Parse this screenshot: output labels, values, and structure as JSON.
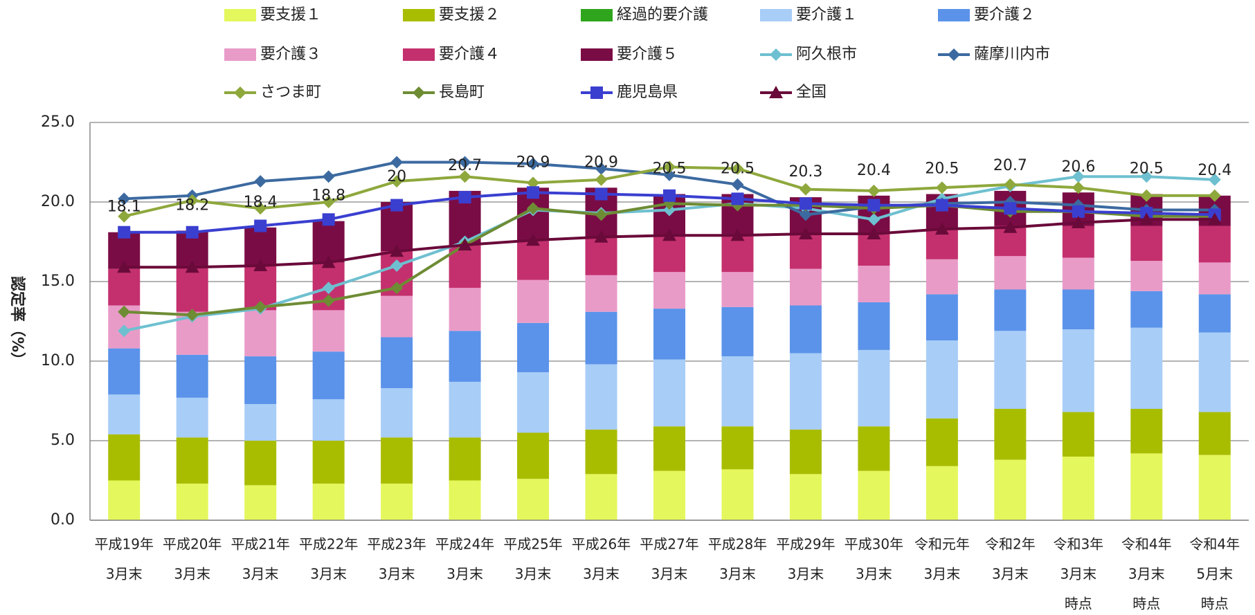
{
  "chart_data": {
    "type": "combo",
    "y_label": "認定率（%）",
    "categories": [
      [
        "平成19年",
        "3月末"
      ],
      [
        "平成20年",
        "3月末"
      ],
      [
        "平成21年",
        "3月末"
      ],
      [
        "平成22年",
        "3月末"
      ],
      [
        "平成23年",
        "3月末"
      ],
      [
        "平成24年",
        "3月末"
      ],
      [
        "平成25年",
        "3月末"
      ],
      [
        "平成26年",
        "3月末"
      ],
      [
        "平成27年",
        "3月末"
      ],
      [
        "平成28年",
        "3月末"
      ],
      [
        "平成29年",
        "3月末"
      ],
      [
        "平成30年",
        "3月末"
      ],
      [
        "令和元年",
        "3月末"
      ],
      [
        "令和2年",
        "3月末"
      ],
      [
        "令和3年",
        "3月末",
        "時点"
      ],
      [
        "令和4年",
        "3月末",
        "時点"
      ],
      [
        "令和4年",
        "5月末",
        "時点"
      ]
    ],
    "ylim": [
      0,
      25
    ],
    "yticks": [
      {
        "value": 0,
        "label": "0.0"
      },
      {
        "value": 5,
        "label": "5.0"
      },
      {
        "value": 10,
        "label": "10.0"
      },
      {
        "value": 15,
        "label": "15.0"
      },
      {
        "value": 20,
        "label": "20.0"
      },
      {
        "value": 25,
        "label": "25.0"
      }
    ],
    "grid": true,
    "total_labels": [
      18.1,
      18.2,
      18.4,
      18.8,
      20,
      20.7,
      20.9,
      20.9,
      20.5,
      20.5,
      20.3,
      20.4,
      20.5,
      20.7,
      20.6,
      20.5,
      20.4
    ],
    "series": [
      {
        "name": "要支援１",
        "type": "bar",
        "color": "#e4f75c",
        "values": [
          2.5,
          2.3,
          2.2,
          2.3,
          2.3,
          2.5,
          2.6,
          2.9,
          3.1,
          3.2,
          2.9,
          3.1,
          3.4,
          3.8,
          4.0,
          4.2,
          4.1
        ]
      },
      {
        "name": "要支援２",
        "type": "bar",
        "color": "#a9bd00",
        "values": [
          2.9,
          2.9,
          2.8,
          2.7,
          2.9,
          2.7,
          2.9,
          2.8,
          2.8,
          2.7,
          2.8,
          2.8,
          3.0,
          3.2,
          2.8,
          2.8,
          2.7
        ]
      },
      {
        "name": "経過的要介護",
        "type": "bar",
        "color": "#2ea51c",
        "values": [
          0,
          0,
          0,
          0,
          0,
          0,
          0,
          0,
          0,
          0,
          0,
          0,
          0,
          0,
          0,
          0,
          0
        ]
      },
      {
        "name": "要介護１",
        "type": "bar",
        "color": "#a8cdf7",
        "values": [
          2.5,
          2.5,
          2.3,
          2.6,
          3.1,
          3.5,
          3.8,
          4.1,
          4.2,
          4.4,
          4.8,
          4.8,
          4.9,
          4.9,
          5.2,
          5.1,
          5.0
        ]
      },
      {
        "name": "要介護２",
        "type": "bar",
        "color": "#5b93ea",
        "values": [
          2.9,
          2.7,
          3.0,
          3.0,
          3.2,
          3.2,
          3.1,
          3.3,
          3.2,
          3.1,
          3.0,
          3.0,
          2.9,
          2.6,
          2.5,
          2.3,
          2.4
        ]
      },
      {
        "name": "要介護３",
        "type": "bar",
        "color": "#e99bc8",
        "values": [
          2.7,
          2.7,
          2.9,
          2.6,
          2.6,
          2.7,
          2.7,
          2.3,
          2.3,
          2.2,
          2.3,
          2.3,
          2.2,
          2.1,
          2.0,
          1.9,
          2.0
        ]
      },
      {
        "name": "要介護４",
        "type": "bar",
        "color": "#c4306e",
        "values": [
          2.3,
          2.8,
          2.8,
          3.0,
          2.8,
          2.7,
          2.5,
          2.4,
          2.3,
          2.3,
          2.2,
          2.0,
          1.9,
          1.9,
          2.0,
          2.2,
          2.3
        ]
      },
      {
        "name": "要介護５",
        "type": "bar",
        "color": "#7a0c45",
        "values": [
          2.3,
          2.3,
          2.4,
          2.6,
          3.1,
          3.4,
          3.3,
          3.1,
          2.6,
          2.6,
          2.3,
          2.4,
          2.2,
          2.2,
          2.1,
          2.0,
          1.9
        ]
      },
      {
        "name": "阿久根市",
        "type": "line",
        "marker": "diamond",
        "color": "#6ec0d0",
        "values": [
          11.9,
          12.8,
          13.3,
          14.6,
          16.0,
          17.5,
          19.5,
          19.3,
          19.5,
          19.9,
          19.6,
          18.9,
          20.2,
          21.0,
          21.6,
          21.6,
          21.4
        ]
      },
      {
        "name": "薩摩川内市",
        "type": "line",
        "marker": "diamond",
        "color": "#3c6aa0",
        "values": [
          20.2,
          20.4,
          21.3,
          21.6,
          22.5,
          22.5,
          22.4,
          22.1,
          21.7,
          21.1,
          19.2,
          19.7,
          19.9,
          20.0,
          19.8,
          19.5,
          19.5
        ]
      },
      {
        "name": "さつま町",
        "type": "line",
        "marker": "diamond",
        "color": "#8ea83c",
        "values": [
          19.1,
          20.1,
          19.6,
          20.0,
          21.3,
          21.6,
          21.2,
          21.4,
          22.2,
          22.1,
          20.8,
          20.7,
          20.9,
          21.1,
          20.9,
          20.4,
          20.4
        ]
      },
      {
        "name": "長島町",
        "type": "line",
        "marker": "diamond",
        "color": "#6e8c34",
        "values": [
          13.1,
          12.9,
          13.4,
          13.8,
          14.6,
          17.3,
          19.6,
          19.2,
          19.9,
          19.8,
          19.8,
          19.6,
          19.8,
          19.4,
          19.4,
          19.1,
          19.1
        ]
      },
      {
        "name": "鹿児島県",
        "type": "line",
        "marker": "square",
        "color": "#3a3fd0",
        "values": [
          18.1,
          18.1,
          18.5,
          18.9,
          19.8,
          20.3,
          20.6,
          20.5,
          20.4,
          20.2,
          19.9,
          19.8,
          19.8,
          19.6,
          19.4,
          19.3,
          19.2
        ]
      },
      {
        "name": "全国",
        "type": "line",
        "marker": "triangle",
        "color": "#6a0a3a",
        "values": [
          15.9,
          15.9,
          16.0,
          16.2,
          16.9,
          17.3,
          17.6,
          17.8,
          17.9,
          17.9,
          18.0,
          18.0,
          18.3,
          18.4,
          18.7,
          18.9,
          18.9
        ]
      }
    ]
  }
}
